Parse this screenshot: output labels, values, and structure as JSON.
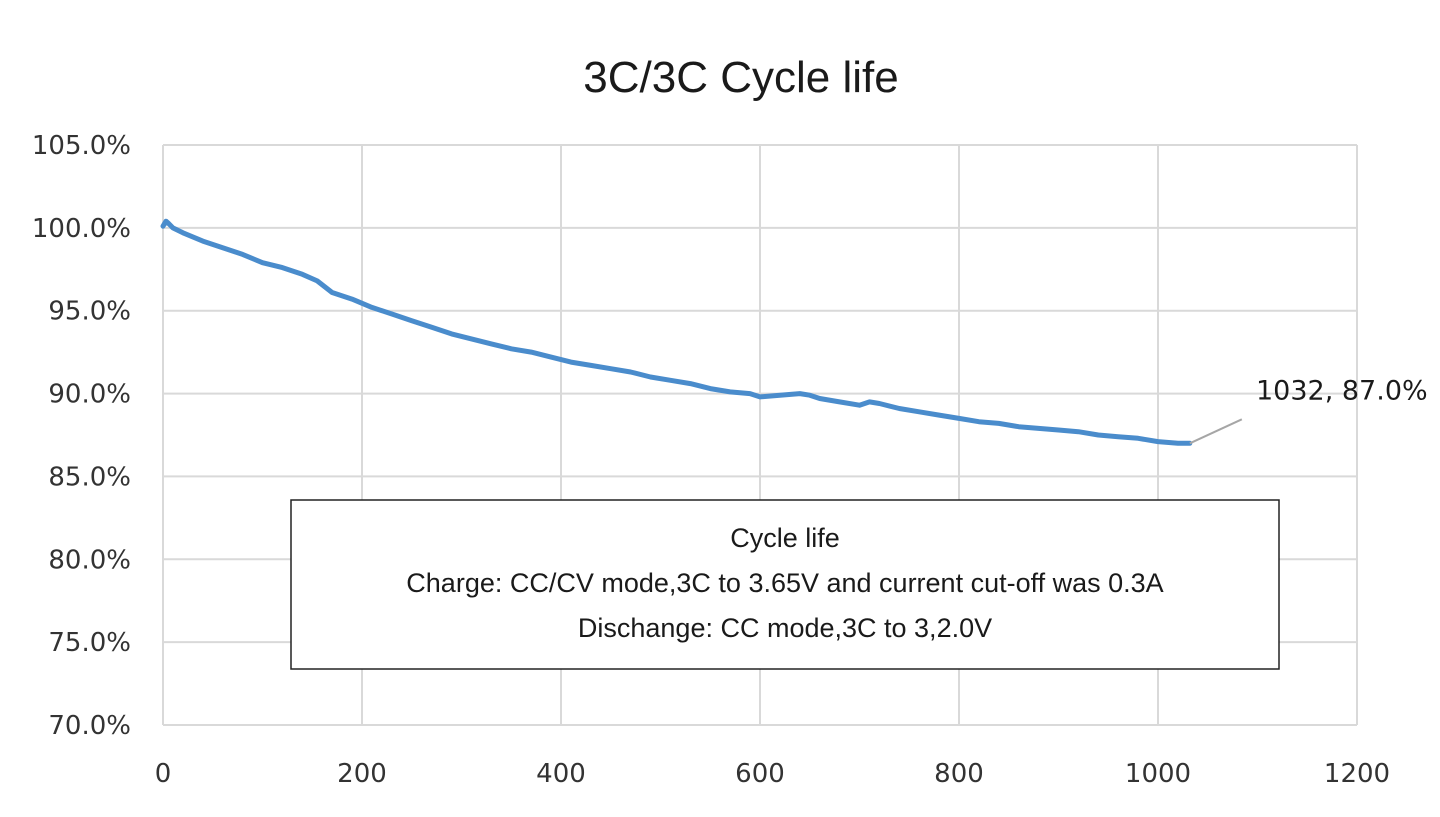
{
  "chart_data": {
    "type": "line",
    "title": "3C/3C Cycle life",
    "xlabel": "",
    "ylabel": "",
    "xlim": [
      0,
      1200
    ],
    "ylim": [
      70,
      105
    ],
    "x_ticks": [
      0,
      200,
      400,
      600,
      800,
      1000,
      1200
    ],
    "y_ticks": [
      70,
      75,
      80,
      85,
      90,
      95,
      100,
      105
    ],
    "y_tick_labels": [
      "70.0%",
      "75.0%",
      "80.0%",
      "85.0%",
      "90.0%",
      "95.0%",
      "100.0%",
      "105.0%"
    ],
    "x_tick_labels": [
      "0",
      "200",
      "400",
      "600",
      "800",
      "1000",
      "1200"
    ],
    "grid": true,
    "series": [
      {
        "color": "#4a8ccc",
        "x": [
          0,
          3,
          5,
          10,
          20,
          40,
          60,
          80,
          100,
          120,
          140,
          155,
          170,
          190,
          210,
          230,
          250,
          270,
          290,
          310,
          330,
          350,
          370,
          390,
          410,
          430,
          450,
          470,
          490,
          510,
          530,
          550,
          570,
          590,
          600,
          620,
          640,
          650,
          660,
          680,
          700,
          710,
          720,
          740,
          760,
          780,
          800,
          820,
          840,
          860,
          880,
          900,
          920,
          940,
          960,
          980,
          1000,
          1020,
          1032
        ],
        "y": [
          100.1,
          100.4,
          100.3,
          100.0,
          99.7,
          99.2,
          98.8,
          98.4,
          97.9,
          97.6,
          97.2,
          96.8,
          96.1,
          95.7,
          95.2,
          94.8,
          94.4,
          94.0,
          93.6,
          93.3,
          93.0,
          92.7,
          92.5,
          92.2,
          91.9,
          91.7,
          91.5,
          91.3,
          91.0,
          90.8,
          90.6,
          90.3,
          90.1,
          90.0,
          89.8,
          89.9,
          90.0,
          89.9,
          89.7,
          89.5,
          89.3,
          89.5,
          89.4,
          89.1,
          88.9,
          88.7,
          88.5,
          88.3,
          88.2,
          88.0,
          87.9,
          87.8,
          87.7,
          87.5,
          87.4,
          87.3,
          87.1,
          87.0,
          87.0
        ]
      }
    ],
    "annotations": [
      {
        "text": "1032, 87.0%",
        "x": 1032,
        "y": 87.0
      }
    ],
    "text_box": {
      "lines": [
        "Cycle life",
        "Charge: CC/CV mode,3C to 3.65V and current cut-off was 0.3A",
        "Dischange: CC mode,3C to 3,2.0V"
      ]
    }
  }
}
